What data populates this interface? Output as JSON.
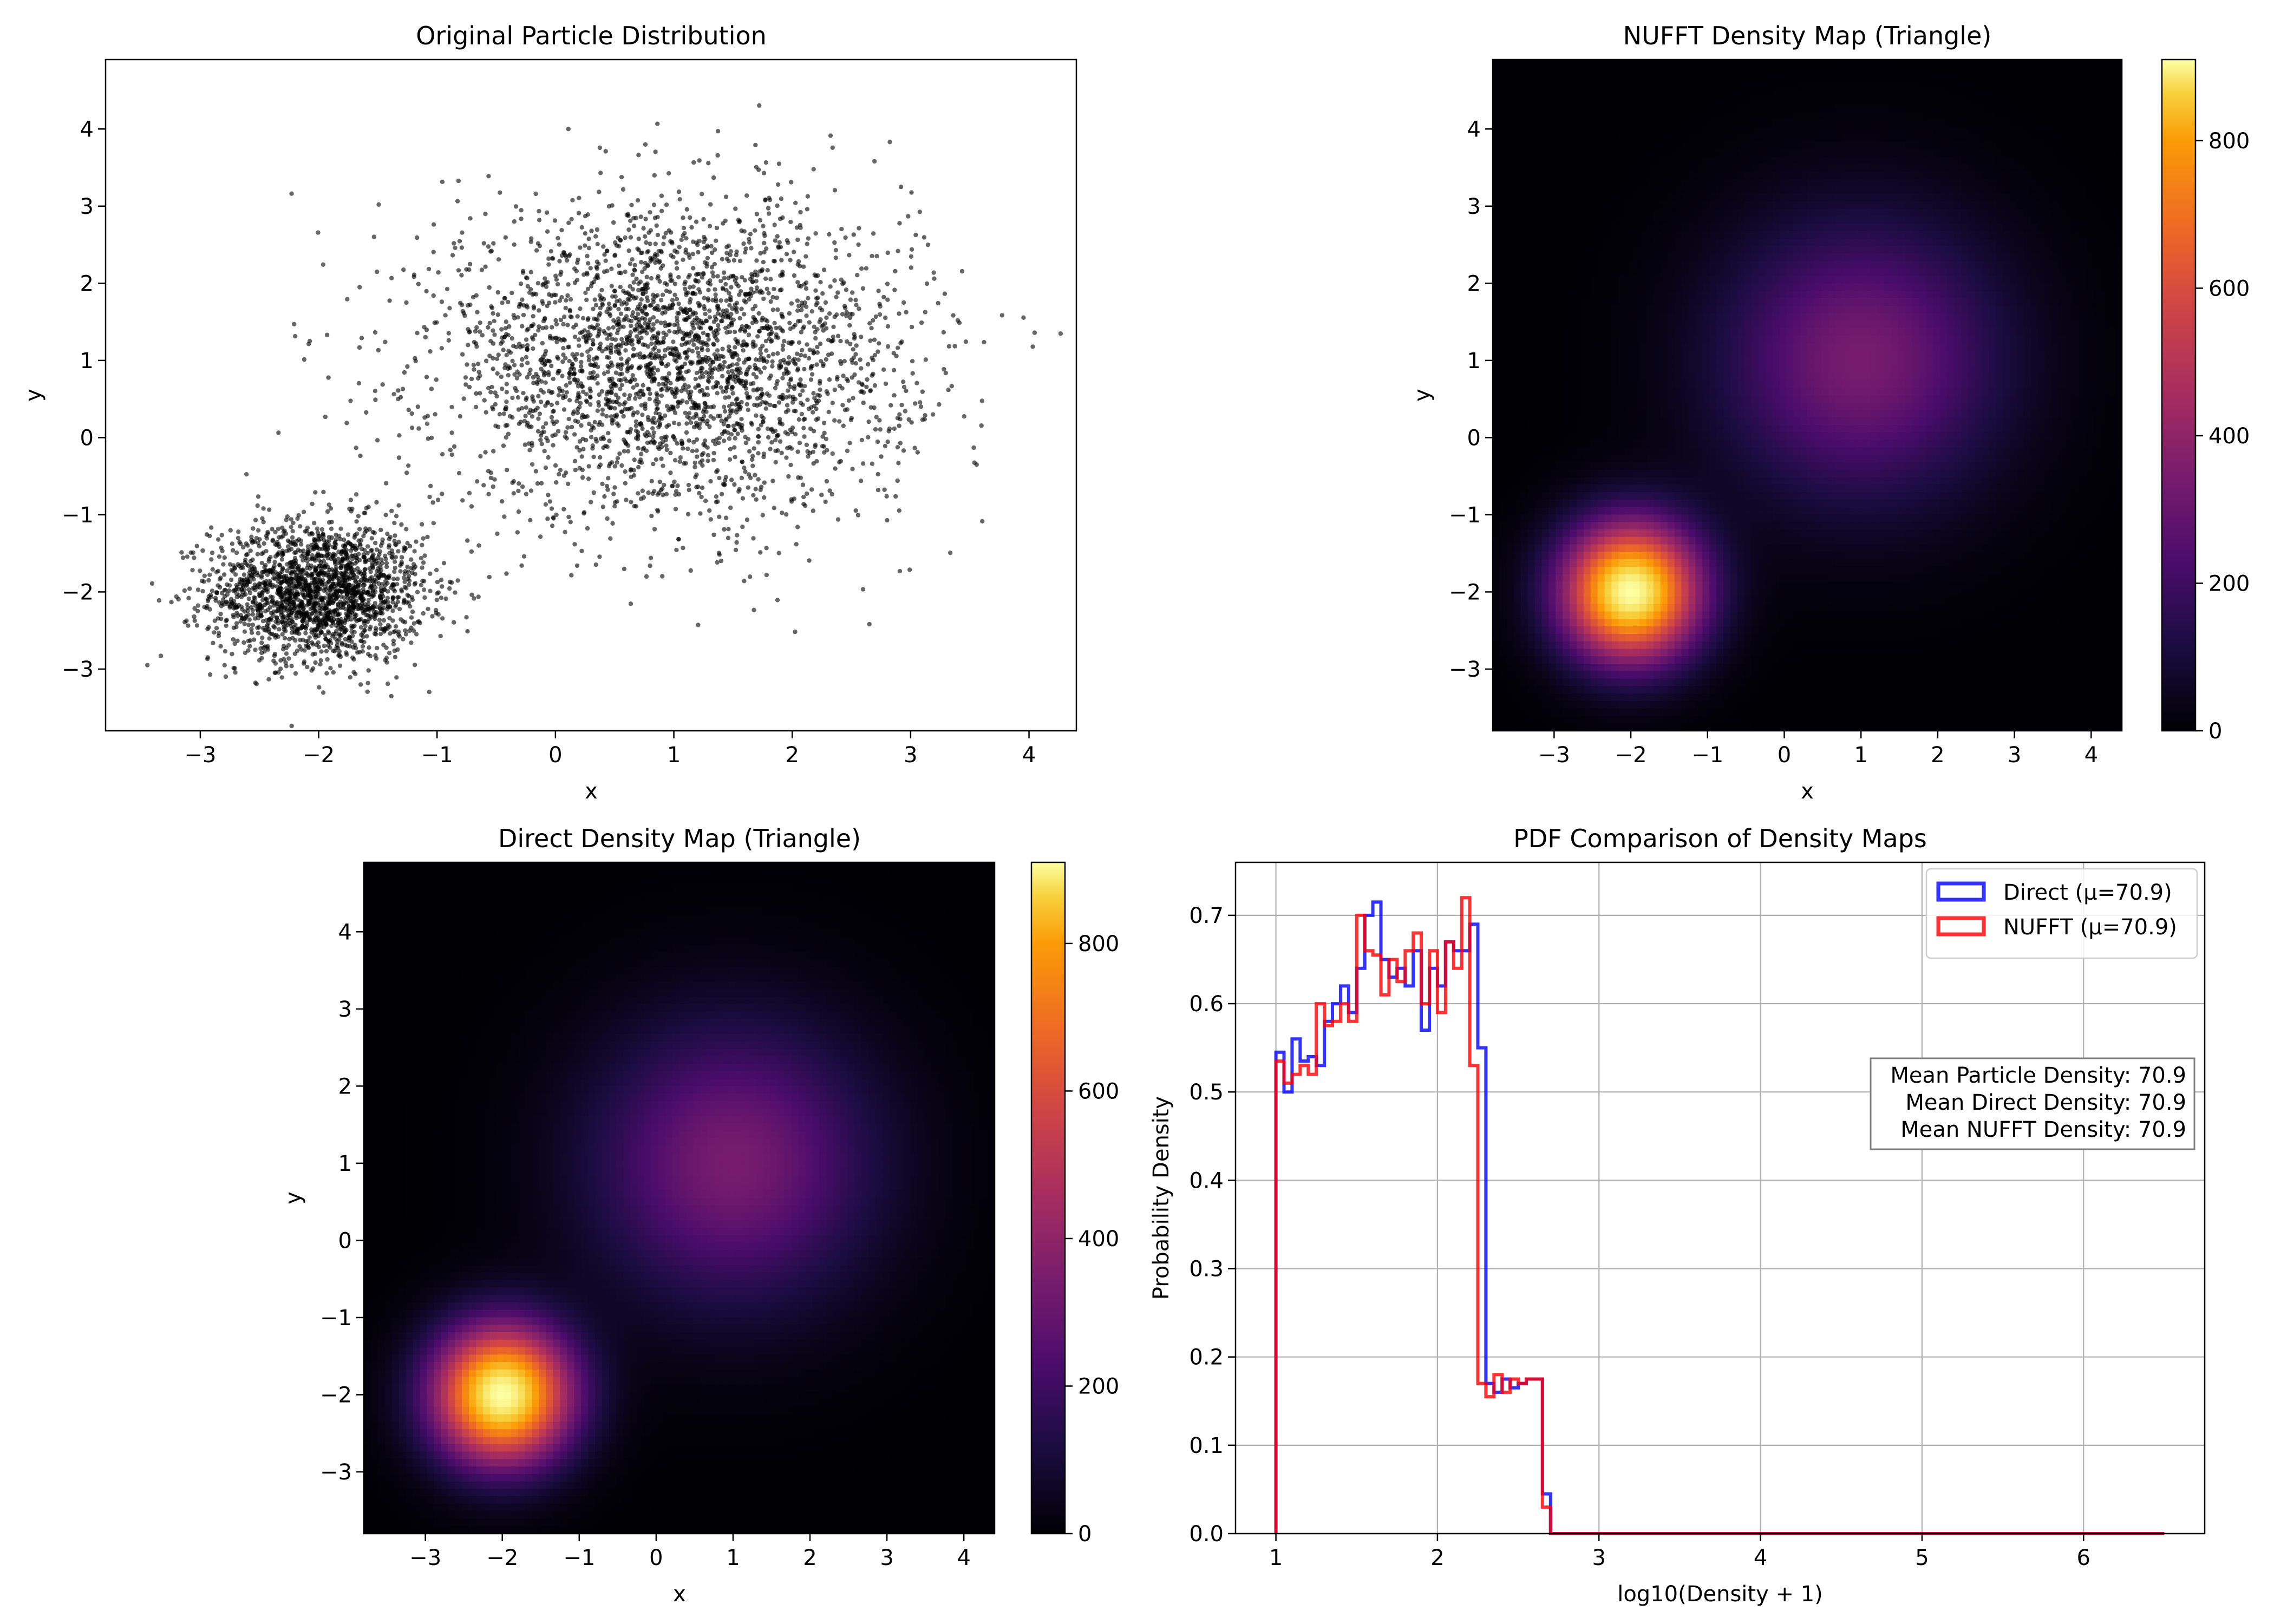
{
  "chart_data": [
    {
      "id": "scatter",
      "type": "scatter",
      "title": "Original Particle Distribution",
      "xlabel": "x",
      "ylabel": "y",
      "xlim": [
        -3.8,
        4.4
      ],
      "ylim": [
        -3.8,
        4.9
      ],
      "xticks": [
        -3,
        -2,
        -1,
        0,
        1,
        2,
        3,
        4
      ],
      "yticks": [
        -3,
        -2,
        -1,
        0,
        1,
        2,
        3,
        4
      ],
      "point_color": "#000000",
      "series": [
        {
          "center": [
            -2.0,
            -2.0
          ],
          "std": [
            0.45,
            0.45
          ],
          "count": 2000
        },
        {
          "center": [
            1.0,
            1.0
          ],
          "std": [
            1.0,
            1.0
          ],
          "count": 3000
        }
      ]
    },
    {
      "id": "nufft",
      "type": "heatmap",
      "title": "NUFFT Density Map (Triangle)",
      "xlabel": "x",
      "ylabel": "y",
      "xlim": [
        -3.8,
        4.4
      ],
      "ylim": [
        -3.8,
        4.9
      ],
      "xticks": [
        -3,
        -2,
        -1,
        0,
        1,
        2,
        3,
        4
      ],
      "yticks": [
        -3,
        -2,
        -1,
        0,
        1,
        2,
        3,
        4
      ],
      "colormap": "inferno",
      "colorbar": {
        "min": 0,
        "max": 910,
        "ticks": [
          0,
          200,
          400,
          600,
          800
        ]
      },
      "blobs": [
        {
          "center": [
            -2.0,
            -2.0
          ],
          "peak": 910,
          "sigma": 0.62
        },
        {
          "center": [
            1.0,
            1.0
          ],
          "peak": 300,
          "sigma": 1.25
        }
      ]
    },
    {
      "id": "direct",
      "type": "heatmap",
      "title": "Direct Density Map (Triangle)",
      "xlabel": "x",
      "ylabel": "y",
      "xlim": [
        -3.8,
        4.4
      ],
      "ylim": [
        -3.8,
        4.9
      ],
      "xticks": [
        -3,
        -2,
        -1,
        0,
        1,
        2,
        3,
        4
      ],
      "yticks": [
        -3,
        -2,
        -1,
        0,
        1,
        2,
        3,
        4
      ],
      "colormap": "inferno",
      "colorbar": {
        "min": 0,
        "max": 910,
        "ticks": [
          0,
          200,
          400,
          600,
          800
        ]
      },
      "blobs": [
        {
          "center": [
            -2.0,
            -2.0
          ],
          "peak": 910,
          "sigma": 0.62
        },
        {
          "center": [
            1.0,
            1.0
          ],
          "peak": 300,
          "sigma": 1.25
        }
      ]
    },
    {
      "id": "pdf",
      "type": "line",
      "title": "PDF Comparison of Density Maps",
      "xlabel": "log10(Density + 1)",
      "ylabel": "Probability Density",
      "xlim": [
        0.75,
        6.75
      ],
      "ylim": [
        0,
        0.76
      ],
      "xticks": [
        1,
        2,
        3,
        4,
        5,
        6
      ],
      "yticks": [
        0.0,
        0.1,
        0.2,
        0.3,
        0.4,
        0.5,
        0.6,
        0.7
      ],
      "grid": true,
      "legend_position": "top-right",
      "annotation": [
        "Mean Particle Density: 70.9",
        "Mean Direct Density: 70.9",
        "Mean NUFFT Density: 70.9"
      ],
      "series": [
        {
          "name": "Direct (μ=70.9)",
          "color": "#0000ff",
          "x": [
            1.0,
            1.05,
            1.1,
            1.15,
            1.2,
            1.25,
            1.3,
            1.35,
            1.4,
            1.45,
            1.5,
            1.55,
            1.6,
            1.65,
            1.7,
            1.75,
            1.8,
            1.85,
            1.9,
            1.95,
            2.0,
            2.05,
            2.1,
            2.15,
            2.2,
            2.25,
            2.3,
            2.35,
            2.4,
            2.45,
            2.5,
            2.55,
            2.6,
            2.65,
            2.7,
            2.75,
            2.8,
            2.85,
            2.9,
            2.95,
            3.0,
            6.5
          ],
          "y": [
            0.545,
            0.5,
            0.56,
            0.535,
            0.54,
            0.53,
            0.58,
            0.6,
            0.62,
            0.59,
            0.64,
            0.7,
            0.715,
            0.65,
            0.63,
            0.64,
            0.62,
            0.66,
            0.57,
            0.64,
            0.62,
            0.67,
            0.66,
            0.66,
            0.69,
            0.55,
            0.17,
            0.16,
            0.175,
            0.165,
            0.17,
            0.175,
            0.175,
            0.045,
            0.0,
            0.0,
            0.0,
            0.0,
            0.0,
            0.0,
            0.0,
            0.0
          ]
        },
        {
          "name": "NUFFT (μ=70.9)",
          "color": "#ff0000",
          "x": [
            1.0,
            1.05,
            1.1,
            1.15,
            1.2,
            1.25,
            1.3,
            1.35,
            1.4,
            1.45,
            1.5,
            1.55,
            1.6,
            1.65,
            1.7,
            1.75,
            1.8,
            1.85,
            1.9,
            1.95,
            2.0,
            2.05,
            2.1,
            2.15,
            2.2,
            2.25,
            2.3,
            2.35,
            2.4,
            2.45,
            2.5,
            2.55,
            2.6,
            2.65,
            2.7,
            2.75,
            2.8,
            2.85,
            2.9,
            2.95,
            3.0,
            6.5
          ],
          "y": [
            0.535,
            0.51,
            0.52,
            0.53,
            0.52,
            0.6,
            0.575,
            0.58,
            0.6,
            0.58,
            0.7,
            0.66,
            0.655,
            0.61,
            0.65,
            0.625,
            0.66,
            0.68,
            0.6,
            0.66,
            0.59,
            0.67,
            0.64,
            0.72,
            0.53,
            0.17,
            0.155,
            0.18,
            0.16,
            0.175,
            0.17,
            0.175,
            0.175,
            0.03,
            0.0,
            0.0,
            0.0,
            0.0,
            0.0,
            0.0,
            0.0,
            0.0
          ]
        }
      ]
    }
  ]
}
